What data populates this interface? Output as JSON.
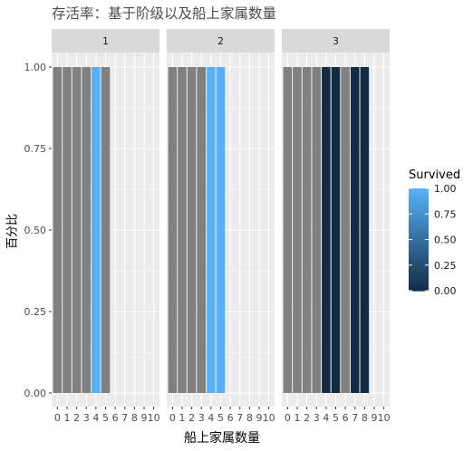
{
  "title": "存活率：基于阶级以及船上家属数量",
  "chart_data": {
    "type": "bar",
    "title": "存活率：基于阶级以及船上家属数量",
    "xlabel": "船上家属数量",
    "ylabel": "百分比",
    "facet_labels": [
      "1",
      "2",
      "3"
    ],
    "x_ticks": [
      "0",
      "1",
      "2",
      "3",
      "4",
      "5",
      "6",
      "7",
      "8",
      "9",
      "10"
    ],
    "y_ticks": [
      "0.00",
      "0.25",
      "0.50",
      "0.75",
      "1.00"
    ],
    "ylim": [
      0,
      1
    ],
    "grid": true,
    "legend": {
      "title": "Survived",
      "type": "colorbar",
      "placement": "right",
      "ticks": [
        "1.00",
        "0.75",
        "0.50",
        "0.25",
        "0.00"
      ]
    },
    "colors": {
      "low": "#132B43",
      "high": "#56B1F7",
      "na": "#808080",
      "strip": "#d9d9d9",
      "panel": "#ebebeb",
      "grid": "#ffffff"
    },
    "facets": [
      {
        "label": "1",
        "bars": [
          {
            "x": 0,
            "value": 1.0,
            "survived": null
          },
          {
            "x": 1,
            "value": 1.0,
            "survived": null
          },
          {
            "x": 2,
            "value": 1.0,
            "survived": null
          },
          {
            "x": 3,
            "value": 1.0,
            "survived": null
          },
          {
            "x": 4,
            "value": 1.0,
            "survived": 1
          },
          {
            "x": 5,
            "value": 1.0,
            "survived": null
          }
        ]
      },
      {
        "label": "2",
        "bars": [
          {
            "x": 0,
            "value": 1.0,
            "survived": null
          },
          {
            "x": 1,
            "value": 1.0,
            "survived": null
          },
          {
            "x": 2,
            "value": 1.0,
            "survived": null
          },
          {
            "x": 3,
            "value": 1.0,
            "survived": null
          },
          {
            "x": 4,
            "value": 1.0,
            "survived": 1
          },
          {
            "x": 5,
            "value": 1.0,
            "survived": 1
          }
        ]
      },
      {
        "label": "3",
        "bars": [
          {
            "x": 0,
            "value": 1.0,
            "survived": null
          },
          {
            "x": 1,
            "value": 1.0,
            "survived": null
          },
          {
            "x": 2,
            "value": 1.0,
            "survived": null
          },
          {
            "x": 3,
            "value": 1.0,
            "survived": null
          },
          {
            "x": 4,
            "value": 1.0,
            "survived": 0
          },
          {
            "x": 5,
            "value": 1.0,
            "survived": 0
          },
          {
            "x": 6,
            "value": 1.0,
            "survived": null
          },
          {
            "x": 7,
            "value": 1.0,
            "survived": 0
          },
          {
            "x": 8,
            "value": 1.0,
            "survived": 0
          }
        ]
      }
    ]
  }
}
